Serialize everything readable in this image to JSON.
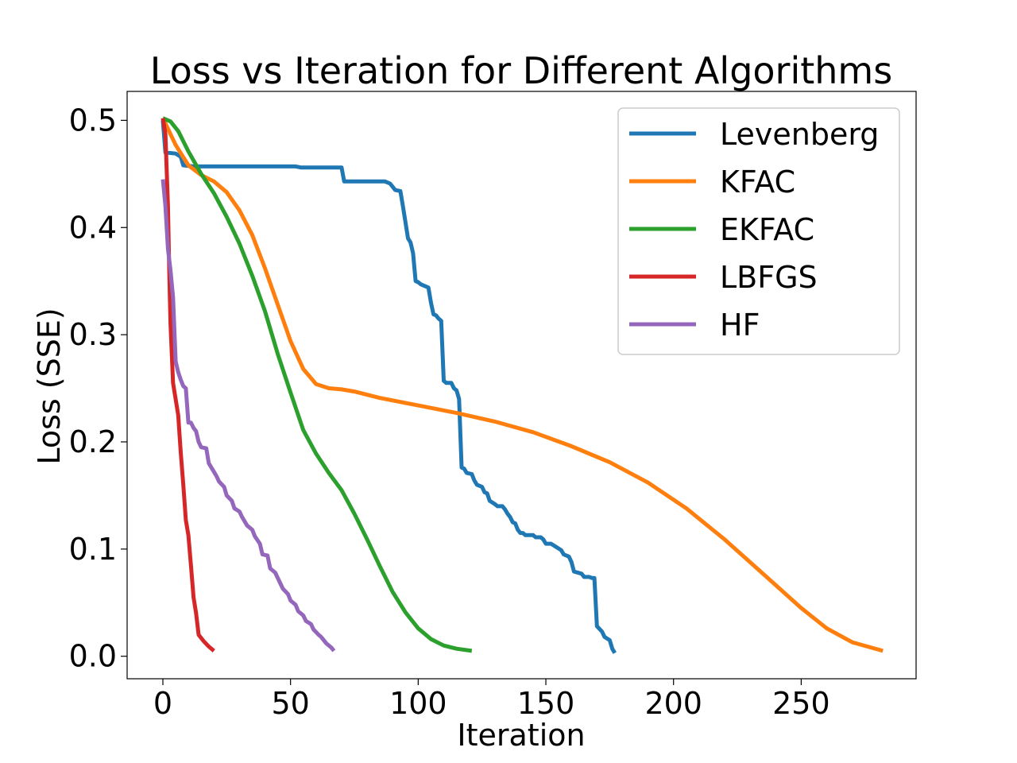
{
  "chart_data": {
    "type": "line",
    "title": "Loss vs Iteration for Different Algorithms",
    "xlabel": "Iteration",
    "ylabel": "Loss (SSE)",
    "xlim": [
      -14,
      295
    ],
    "ylim": [
      -0.021,
      0.527
    ],
    "xticks": [
      0,
      50,
      100,
      150,
      200,
      250
    ],
    "xtick_labels": [
      "0",
      "50",
      "100",
      "150",
      "200",
      "250"
    ],
    "yticks": [
      0.0,
      0.1,
      0.2,
      0.3,
      0.4,
      0.5
    ],
    "ytick_labels": [
      "0.0",
      "0.1",
      "0.2",
      "0.3",
      "0.4",
      "0.5"
    ],
    "grid": false,
    "legend_position": "top-right",
    "series": [
      {
        "name": "Levenberg",
        "color": "#1f77b4",
        "points": [
          [
            0,
            0.5
          ],
          [
            1,
            0.47
          ],
          [
            5,
            0.469
          ],
          [
            7,
            0.466
          ],
          [
            8,
            0.458
          ],
          [
            12,
            0.457
          ],
          [
            52,
            0.457
          ],
          [
            54,
            0.456
          ],
          [
            70,
            0.456
          ],
          [
            71,
            0.443
          ],
          [
            87,
            0.443
          ],
          [
            89,
            0.441
          ],
          [
            91,
            0.435
          ],
          [
            93,
            0.434
          ],
          [
            94,
            0.42
          ],
          [
            95,
            0.405
          ],
          [
            96,
            0.39
          ],
          [
            97,
            0.386
          ],
          [
            98,
            0.376
          ],
          [
            99,
            0.35
          ],
          [
            100,
            0.349
          ],
          [
            101,
            0.347
          ],
          [
            104,
            0.344
          ],
          [
            105,
            0.33
          ],
          [
            106,
            0.319
          ],
          [
            107,
            0.318
          ],
          [
            108,
            0.315
          ],
          [
            109,
            0.313
          ],
          [
            110,
            0.257
          ],
          [
            111,
            0.255
          ],
          [
            113,
            0.255
          ],
          [
            114,
            0.25
          ],
          [
            115,
            0.248
          ],
          [
            116,
            0.24
          ],
          [
            117,
            0.176
          ],
          [
            118,
            0.175
          ],
          [
            119,
            0.171
          ],
          [
            121,
            0.17
          ],
          [
            122,
            0.164
          ],
          [
            123,
            0.16
          ],
          [
            125,
            0.158
          ],
          [
            126,
            0.153
          ],
          [
            127,
            0.152
          ],
          [
            128,
            0.145
          ],
          [
            130,
            0.142
          ],
          [
            131,
            0.14
          ],
          [
            133,
            0.14
          ],
          [
            134,
            0.137
          ],
          [
            135,
            0.133
          ],
          [
            136,
            0.13
          ],
          [
            137,
            0.125
          ],
          [
            138,
            0.124
          ],
          [
            139,
            0.118
          ],
          [
            140,
            0.115
          ],
          [
            141,
            0.115
          ],
          [
            142,
            0.113
          ],
          [
            145,
            0.113
          ],
          [
            146,
            0.111
          ],
          [
            148,
            0.111
          ],
          [
            149,
            0.109
          ],
          [
            150,
            0.105
          ],
          [
            152,
            0.105
          ],
          [
            154,
            0.102
          ],
          [
            156,
            0.099
          ],
          [
            157,
            0.095
          ],
          [
            159,
            0.093
          ],
          [
            160,
            0.088
          ],
          [
            161,
            0.079
          ],
          [
            164,
            0.077
          ],
          [
            165,
            0.074
          ],
          [
            167,
            0.074
          ],
          [
            168,
            0.073
          ],
          [
            169,
            0.073
          ],
          [
            170,
            0.028
          ],
          [
            172,
            0.023
          ],
          [
            173,
            0.018
          ],
          [
            175,
            0.015
          ],
          [
            176,
            0.007
          ],
          [
            177,
            0.003
          ]
        ]
      },
      {
        "name": "KFAC",
        "color": "#ff7f0e",
        "points": [
          [
            0,
            0.502
          ],
          [
            5,
            0.477
          ],
          [
            10,
            0.458
          ],
          [
            15,
            0.449
          ],
          [
            20,
            0.443
          ],
          [
            25,
            0.433
          ],
          [
            30,
            0.416
          ],
          [
            35,
            0.393
          ],
          [
            40,
            0.362
          ],
          [
            45,
            0.328
          ],
          [
            50,
            0.294
          ],
          [
            55,
            0.268
          ],
          [
            60,
            0.254
          ],
          [
            65,
            0.25
          ],
          [
            70,
            0.249
          ],
          [
            75,
            0.247
          ],
          [
            85,
            0.241
          ],
          [
            100,
            0.234
          ],
          [
            115,
            0.227
          ],
          [
            130,
            0.219
          ],
          [
            145,
            0.209
          ],
          [
            160,
            0.196
          ],
          [
            175,
            0.181
          ],
          [
            190,
            0.162
          ],
          [
            205,
            0.138
          ],
          [
            220,
            0.109
          ],
          [
            235,
            0.077
          ],
          [
            250,
            0.045
          ],
          [
            260,
            0.026
          ],
          [
            270,
            0.013
          ],
          [
            282,
            0.005
          ]
        ]
      },
      {
        "name": "EKFAC",
        "color": "#2ca02c",
        "points": [
          [
            0,
            0.502
          ],
          [
            3,
            0.499
          ],
          [
            6,
            0.49
          ],
          [
            10,
            0.471
          ],
          [
            15,
            0.45
          ],
          [
            20,
            0.432
          ],
          [
            25,
            0.41
          ],
          [
            30,
            0.385
          ],
          [
            35,
            0.355
          ],
          [
            40,
            0.322
          ],
          [
            45,
            0.282
          ],
          [
            50,
            0.246
          ],
          [
            55,
            0.211
          ],
          [
            60,
            0.189
          ],
          [
            65,
            0.171
          ],
          [
            70,
            0.155
          ],
          [
            75,
            0.133
          ],
          [
            80,
            0.109
          ],
          [
            85,
            0.084
          ],
          [
            90,
            0.06
          ],
          [
            95,
            0.041
          ],
          [
            100,
            0.026
          ],
          [
            105,
            0.016
          ],
          [
            110,
            0.01
          ],
          [
            115,
            0.007
          ],
          [
            121,
            0.005
          ]
        ]
      },
      {
        "name": "LBFGS",
        "color": "#d62728",
        "points": [
          [
            0,
            0.502
          ],
          [
            1,
            0.487
          ],
          [
            2,
            0.42
          ],
          [
            2.5,
            0.36
          ],
          [
            3,
            0.31
          ],
          [
            4,
            0.255
          ],
          [
            6,
            0.225
          ],
          [
            7,
            0.19
          ],
          [
            8,
            0.16
          ],
          [
            9,
            0.127
          ],
          [
            10,
            0.113
          ],
          [
            11,
            0.085
          ],
          [
            12,
            0.055
          ],
          [
            13,
            0.04
          ],
          [
            14,
            0.02
          ],
          [
            16,
            0.014
          ],
          [
            18,
            0.009
          ],
          [
            20,
            0.005
          ]
        ]
      },
      {
        "name": "HF",
        "color": "#9467bd",
        "points": [
          [
            0,
            0.445
          ],
          [
            1,
            0.42
          ],
          [
            2,
            0.38
          ],
          [
            3,
            0.36
          ],
          [
            4,
            0.335
          ],
          [
            5,
            0.275
          ],
          [
            6,
            0.265
          ],
          [
            7,
            0.258
          ],
          [
            8,
            0.252
          ],
          [
            9,
            0.25
          ],
          [
            10,
            0.218
          ],
          [
            11,
            0.218
          ],
          [
            12,
            0.213
          ],
          [
            13,
            0.21
          ],
          [
            14,
            0.2
          ],
          [
            15,
            0.195
          ],
          [
            17,
            0.194
          ],
          [
            18,
            0.18
          ],
          [
            20,
            0.172
          ],
          [
            21,
            0.168
          ],
          [
            22,
            0.163
          ],
          [
            24,
            0.158
          ],
          [
            25,
            0.15
          ],
          [
            27,
            0.145
          ],
          [
            28,
            0.138
          ],
          [
            30,
            0.135
          ],
          [
            31,
            0.13
          ],
          [
            33,
            0.122
          ],
          [
            35,
            0.118
          ],
          [
            36,
            0.112
          ],
          [
            38,
            0.105
          ],
          [
            39,
            0.095
          ],
          [
            41,
            0.094
          ],
          [
            42,
            0.082
          ],
          [
            44,
            0.078
          ],
          [
            46,
            0.068
          ],
          [
            47,
            0.063
          ],
          [
            49,
            0.058
          ],
          [
            50,
            0.052
          ],
          [
            52,
            0.048
          ],
          [
            53,
            0.042
          ],
          [
            55,
            0.038
          ],
          [
            56,
            0.033
          ],
          [
            58,
            0.03
          ],
          [
            59,
            0.025
          ],
          [
            61,
            0.02
          ],
          [
            62,
            0.018
          ],
          [
            64,
            0.012
          ],
          [
            66,
            0.008
          ],
          [
            67,
            0.005
          ]
        ]
      }
    ]
  }
}
